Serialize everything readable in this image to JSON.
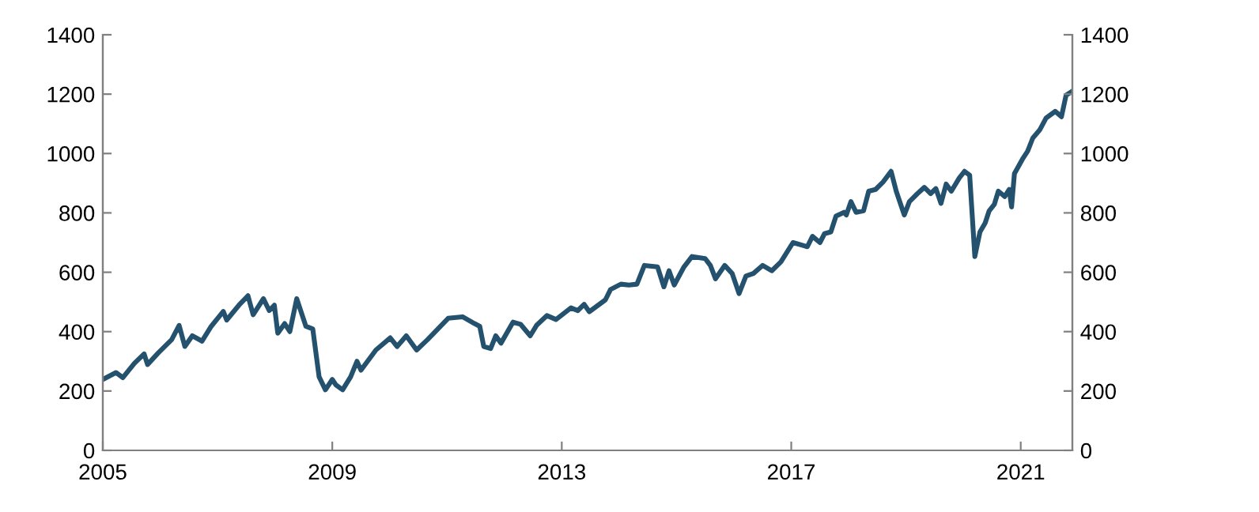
{
  "chart_data": {
    "type": "line",
    "series": [
      {
        "color": "#24526e",
        "x": [
          2005.0,
          2005.23,
          2005.35,
          2005.55,
          2005.72,
          2005.78,
          2005.97,
          2006.2,
          2006.33,
          2006.43,
          2006.56,
          2006.73,
          2006.89,
          2007.1,
          2007.16,
          2007.39,
          2007.53,
          2007.62,
          2007.8,
          2007.9,
          2007.99,
          2008.05,
          2008.17,
          2008.26,
          2008.38,
          2008.54,
          2008.66,
          2008.77,
          2008.88,
          2009.0,
          2009.06,
          2009.18,
          2009.32,
          2009.43,
          2009.5,
          2009.76,
          2010.01,
          2010.13,
          2010.29,
          2010.47,
          2010.66,
          2010.84,
          2011.02,
          2011.27,
          2011.48,
          2011.57,
          2011.64,
          2011.76,
          2011.85,
          2011.94,
          2012.15,
          2012.28,
          2012.45,
          2012.56,
          2012.74,
          2012.9,
          2013.16,
          2013.28,
          2013.39,
          2013.48,
          2013.76,
          2013.85,
          2014.03,
          2014.17,
          2014.31,
          2014.44,
          2014.67,
          2014.78,
          2014.87,
          2014.96,
          2015.13,
          2015.27,
          2015.5,
          2015.59,
          2015.68,
          2015.84,
          2015.97,
          2016.09,
          2016.21,
          2016.34,
          2016.5,
          2016.66,
          2016.82,
          2017.03,
          2017.28,
          2017.37,
          2017.5,
          2017.58,
          2017.69,
          2017.78,
          2017.92,
          2017.96,
          2018.04,
          2018.13,
          2018.26,
          2018.35,
          2018.47,
          2018.6,
          2018.74,
          2018.83,
          2018.97,
          2019.06,
          2019.2,
          2019.32,
          2019.43,
          2019.52,
          2019.61,
          2019.7,
          2019.79,
          2019.93,
          2020.02,
          2020.11,
          2020.2,
          2020.29,
          2020.38,
          2020.45,
          2020.54,
          2020.61,
          2020.72,
          2020.8,
          2020.84,
          2020.89,
          2021.03,
          2021.12,
          2021.21,
          2021.33,
          2021.44,
          2021.6,
          2021.71,
          2021.79,
          2021.9
        ],
        "values": [
          239,
          262,
          245,
          293,
          325,
          289,
          329,
          373,
          421,
          350,
          386,
          368,
          418,
          468,
          439,
          493,
          521,
          457,
          511,
          471,
          489,
          395,
          427,
          400,
          511,
          418,
          409,
          248,
          204,
          239,
          221,
          204,
          248,
          300,
          270,
          338,
          379,
          350,
          386,
          338,
          373,
          409,
          445,
          450,
          427,
          418,
          350,
          343,
          386,
          361,
          432,
          425,
          386,
          421,
          454,
          441,
          480,
          471,
          492,
          467,
          507,
          542,
          560,
          557,
          560,
          623,
          618,
          551,
          605,
          557,
          618,
          653,
          646,
          623,
          578,
          623,
          596,
          528,
          587,
          596,
          623,
          605,
          635,
          700,
          686,
          721,
          700,
          730,
          736,
          789,
          802,
          793,
          838,
          802,
          807,
          873,
          879,
          904,
          940,
          873,
          793,
          838,
          865,
          886,
          865,
          882,
          832,
          897,
          873,
          918,
          940,
          927,
          653,
          736,
          766,
          807,
          829,
          873,
          855,
          879,
          820,
          932,
          981,
          1008,
          1052,
          1079,
          1119,
          1142,
          1124,
          1196,
          1210
        ]
      }
    ],
    "xlim": [
      2005,
      2021.9
    ],
    "xticks": [
      2005,
      2009,
      2013,
      2017,
      2021
    ],
    "ylim": [
      0,
      1400
    ],
    "yticks": [
      0,
      200,
      400,
      600,
      800,
      1000,
      1200,
      1400
    ],
    "y2lim": [
      0,
      1400
    ],
    "y2ticks": [
      0,
      200,
      400,
      600,
      800,
      1000,
      1200,
      1400
    ],
    "grid": false,
    "marker": "none",
    "line_style": "solid"
  }
}
